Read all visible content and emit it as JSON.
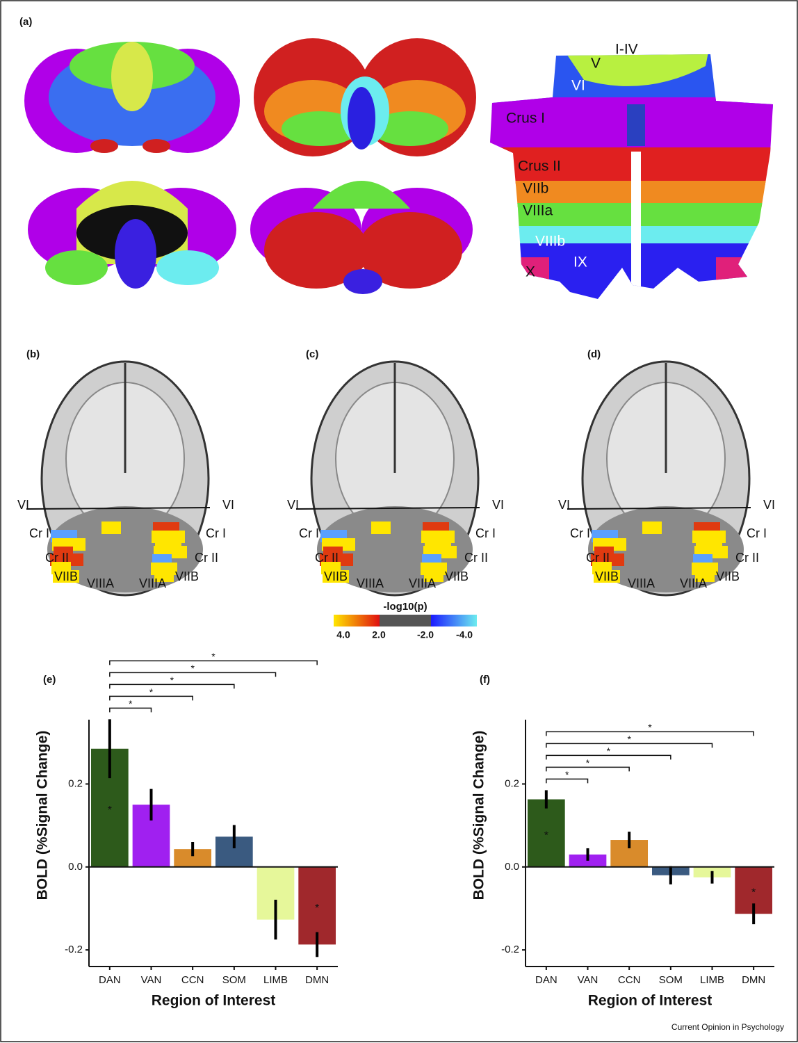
{
  "panel_a": {
    "label": "(a)",
    "flatmap_labels": [
      "I-IV",
      "V",
      "VI",
      "Crus I",
      "Crus II",
      "VIIb",
      "VIIIa",
      "VIIIb",
      "IX",
      "X"
    ]
  },
  "brain_panels": [
    {
      "label": "(b)",
      "region_labels": [
        "VI",
        "VI",
        "Cr I",
        "Cr I",
        "Cr II",
        "Cr II",
        "VIIB",
        "VIIB",
        "VIIIA",
        "VIIIA"
      ]
    },
    {
      "label": "(c)",
      "region_labels": [
        "VI",
        "VI",
        "Cr I",
        "Cr I",
        "Cr II",
        "Cr II",
        "VIIB",
        "VIIB",
        "VIIIA",
        "VIIIA"
      ]
    },
    {
      "label": "(d)",
      "region_labels": [
        "VI",
        "VI",
        "Cr I",
        "Cr I",
        "Cr II",
        "Cr II",
        "VIIB",
        "VIIB",
        "VIIIA",
        "VIIIA"
      ]
    }
  ],
  "colorbar": {
    "title": "-log10(p)",
    "labels": [
      "4.0",
      "2.0",
      "-2.0",
      "-4.0"
    ]
  },
  "chart_data": [
    {
      "type": "bar",
      "panel_label": "(e)",
      "y_label": "BOLD (%Signal Change)",
      "x_label": "Region of Interest",
      "categories": [
        "DAN",
        "VAN",
        "CCN",
        "SOM",
        "LIMB",
        "DMN"
      ],
      "values": [
        0.285,
        0.15,
        0.043,
        0.073,
        -0.127,
        -0.187
      ],
      "errors": [
        0.071,
        0.038,
        0.017,
        0.028,
        0.048,
        0.03
      ],
      "colors": [
        "#2d5a1b",
        "#a020f0",
        "#d98b2b",
        "#3a5a80",
        "#e6f79a",
        "#a0282c"
      ],
      "bar_stars": [
        "*",
        null,
        null,
        null,
        null,
        "*"
      ],
      "comparisons": [
        {
          "to": 1,
          "label": "*"
        },
        {
          "to": 2,
          "label": "*"
        },
        {
          "to": 3,
          "label": "*"
        },
        {
          "to": 4,
          "label": "*"
        },
        {
          "to": 5,
          "label": "*"
        }
      ],
      "ylim": [
        -0.24,
        0.355
      ],
      "yticks": [
        {
          "value": -0.2,
          "label": "-0.2"
        },
        {
          "value": 0,
          "label": "0.0"
        },
        {
          "value": 0.2,
          "label": "0.2"
        }
      ]
    },
    {
      "type": "bar",
      "panel_label": "(f)",
      "y_label": "BOLD (%Signal Change)",
      "x_label": "Region of Interest",
      "categories": [
        "DAN",
        "VAN",
        "CCN",
        "SOM",
        "LIMB",
        "DMN"
      ],
      "values": [
        0.163,
        0.03,
        0.065,
        -0.02,
        -0.025,
        -0.113
      ],
      "errors": [
        0.022,
        0.015,
        0.02,
        0.022,
        0.015,
        0.025
      ],
      "colors": [
        "#2d5a1b",
        "#a020f0",
        "#d98b2b",
        "#3a5a80",
        "#e6f79a",
        "#a0282c"
      ],
      "bar_stars": [
        "*",
        null,
        null,
        null,
        null,
        "*"
      ],
      "comparisons": [
        {
          "to": 1,
          "label": "*"
        },
        {
          "to": 2,
          "label": "*"
        },
        {
          "to": 3,
          "label": "*"
        },
        {
          "to": 4,
          "label": "*"
        },
        {
          "to": 5,
          "label": "*"
        }
      ],
      "ylim": [
        -0.24,
        0.355
      ],
      "yticks": [
        {
          "value": -0.2,
          "label": "-0.2"
        },
        {
          "value": 0,
          "label": "0.0"
        },
        {
          "value": 0.2,
          "label": "0.2"
        }
      ]
    }
  ],
  "footer": "Current Opinion in Psychology"
}
